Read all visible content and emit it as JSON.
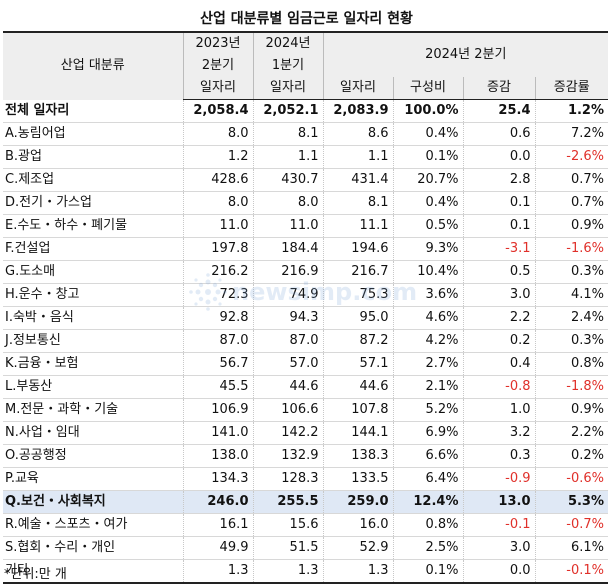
{
  "title": "산업 대분류별 임금근로 일자리 현황",
  "header": {
    "industry": "산업 대분류",
    "col_2023_year": "2023년",
    "col_2023_q": "2분기",
    "col_2024q1_year": "2024년",
    "col_2024q1_q": "1분기",
    "group_2024q2": "2024년 2분기",
    "jobs": "일자리",
    "share": "구성비",
    "change": "증감",
    "change_rate": "증감률"
  },
  "rows": [
    {
      "label": "전체 일자리",
      "a": "2,058.4",
      "b": "2,052.1",
      "c": "2,083.9",
      "d": "100.0%",
      "e": "25.4",
      "f": "1.2%"
    },
    {
      "label": "A.농림어업",
      "a": "8.0",
      "b": "8.1",
      "c": "8.6",
      "d": "0.4%",
      "e": "0.6",
      "f": "7.2%"
    },
    {
      "label": "B.광업",
      "a": "1.2",
      "b": "1.1",
      "c": "1.1",
      "d": "0.1%",
      "e": "0.0",
      "f": "-2.6%"
    },
    {
      "label": "C.제조업",
      "a": "428.6",
      "b": "430.7",
      "c": "431.4",
      "d": "20.7%",
      "e": "2.8",
      "f": "0.7%"
    },
    {
      "label": "D.전기・가스업",
      "a": "8.0",
      "b": "8.0",
      "c": "8.1",
      "d": "0.4%",
      "e": "0.1",
      "f": "0.7%"
    },
    {
      "label": "E.수도・하수・폐기물",
      "a": "11.0",
      "b": "11.0",
      "c": "11.1",
      "d": "0.5%",
      "e": "0.1",
      "f": "0.9%"
    },
    {
      "label": "F.건설업",
      "a": "197.8",
      "b": "184.4",
      "c": "194.6",
      "d": "9.3%",
      "e": "-3.1",
      "f": "-1.6%"
    },
    {
      "label": "G.도소매",
      "a": "216.2",
      "b": "216.9",
      "c": "216.7",
      "d": "10.4%",
      "e": "0.5",
      "f": "0.3%"
    },
    {
      "label": "H.운수・창고",
      "a": "72.3",
      "b": "74.9",
      "c": "75.3",
      "d": "3.6%",
      "e": "3.0",
      "f": "4.1%"
    },
    {
      "label": "I.숙박・음식",
      "a": "92.8",
      "b": "94.3",
      "c": "95.0",
      "d": "4.6%",
      "e": "2.2",
      "f": "2.4%"
    },
    {
      "label": "J.정보통신",
      "a": "87.0",
      "b": "87.0",
      "c": "87.2",
      "d": "4.2%",
      "e": "0.2",
      "f": "0.3%"
    },
    {
      "label": "K.금융・보험",
      "a": "56.7",
      "b": "57.0",
      "c": "57.1",
      "d": "2.7%",
      "e": "0.4",
      "f": "0.8%"
    },
    {
      "label": "L.부동산",
      "a": "45.5",
      "b": "44.6",
      "c": "44.6",
      "d": "2.1%",
      "e": "-0.8",
      "f": "-1.8%"
    },
    {
      "label": "M.전문・과학・기술",
      "a": "106.9",
      "b": "106.6",
      "c": "107.8",
      "d": "5.2%",
      "e": "1.0",
      "f": "0.9%"
    },
    {
      "label": "N.사업・임대",
      "a": "141.0",
      "b": "142.2",
      "c": "144.1",
      "d": "6.9%",
      "e": "3.2",
      "f": "2.2%"
    },
    {
      "label": "O.공공행정",
      "a": "138.0",
      "b": "132.9",
      "c": "138.3",
      "d": "6.6%",
      "e": "0.3",
      "f": "0.2%"
    },
    {
      "label": "P.교육",
      "a": "134.3",
      "b": "128.3",
      "c": "133.5",
      "d": "6.4%",
      "e": "-0.9",
      "f": "-0.6%"
    },
    {
      "label": "Q.보건・사회복지",
      "a": "246.0",
      "b": "255.5",
      "c": "259.0",
      "d": "12.4%",
      "e": "13.0",
      "f": "5.3%"
    },
    {
      "label": "R.예술・스포츠・여가",
      "a": "16.1",
      "b": "15.6",
      "c": "16.0",
      "d": "0.8%",
      "e": "-0.1",
      "f": "-0.7%"
    },
    {
      "label": "S.협회・수리・개인",
      "a": "49.9",
      "b": "51.5",
      "c": "52.9",
      "d": "2.5%",
      "e": "3.0",
      "f": "6.1%"
    },
    {
      "label": "기타",
      "a": "1.3",
      "b": "1.3",
      "c": "1.3",
      "d": "0.1%",
      "e": "0.0",
      "f": "-0.1%"
    }
  ],
  "note": "*단위:만 개",
  "watermark": "newsimp.com",
  "colors": {
    "negative": "#e0302a",
    "highlight_row": "#dfe8f5",
    "header_bg": "#eeeeee"
  }
}
